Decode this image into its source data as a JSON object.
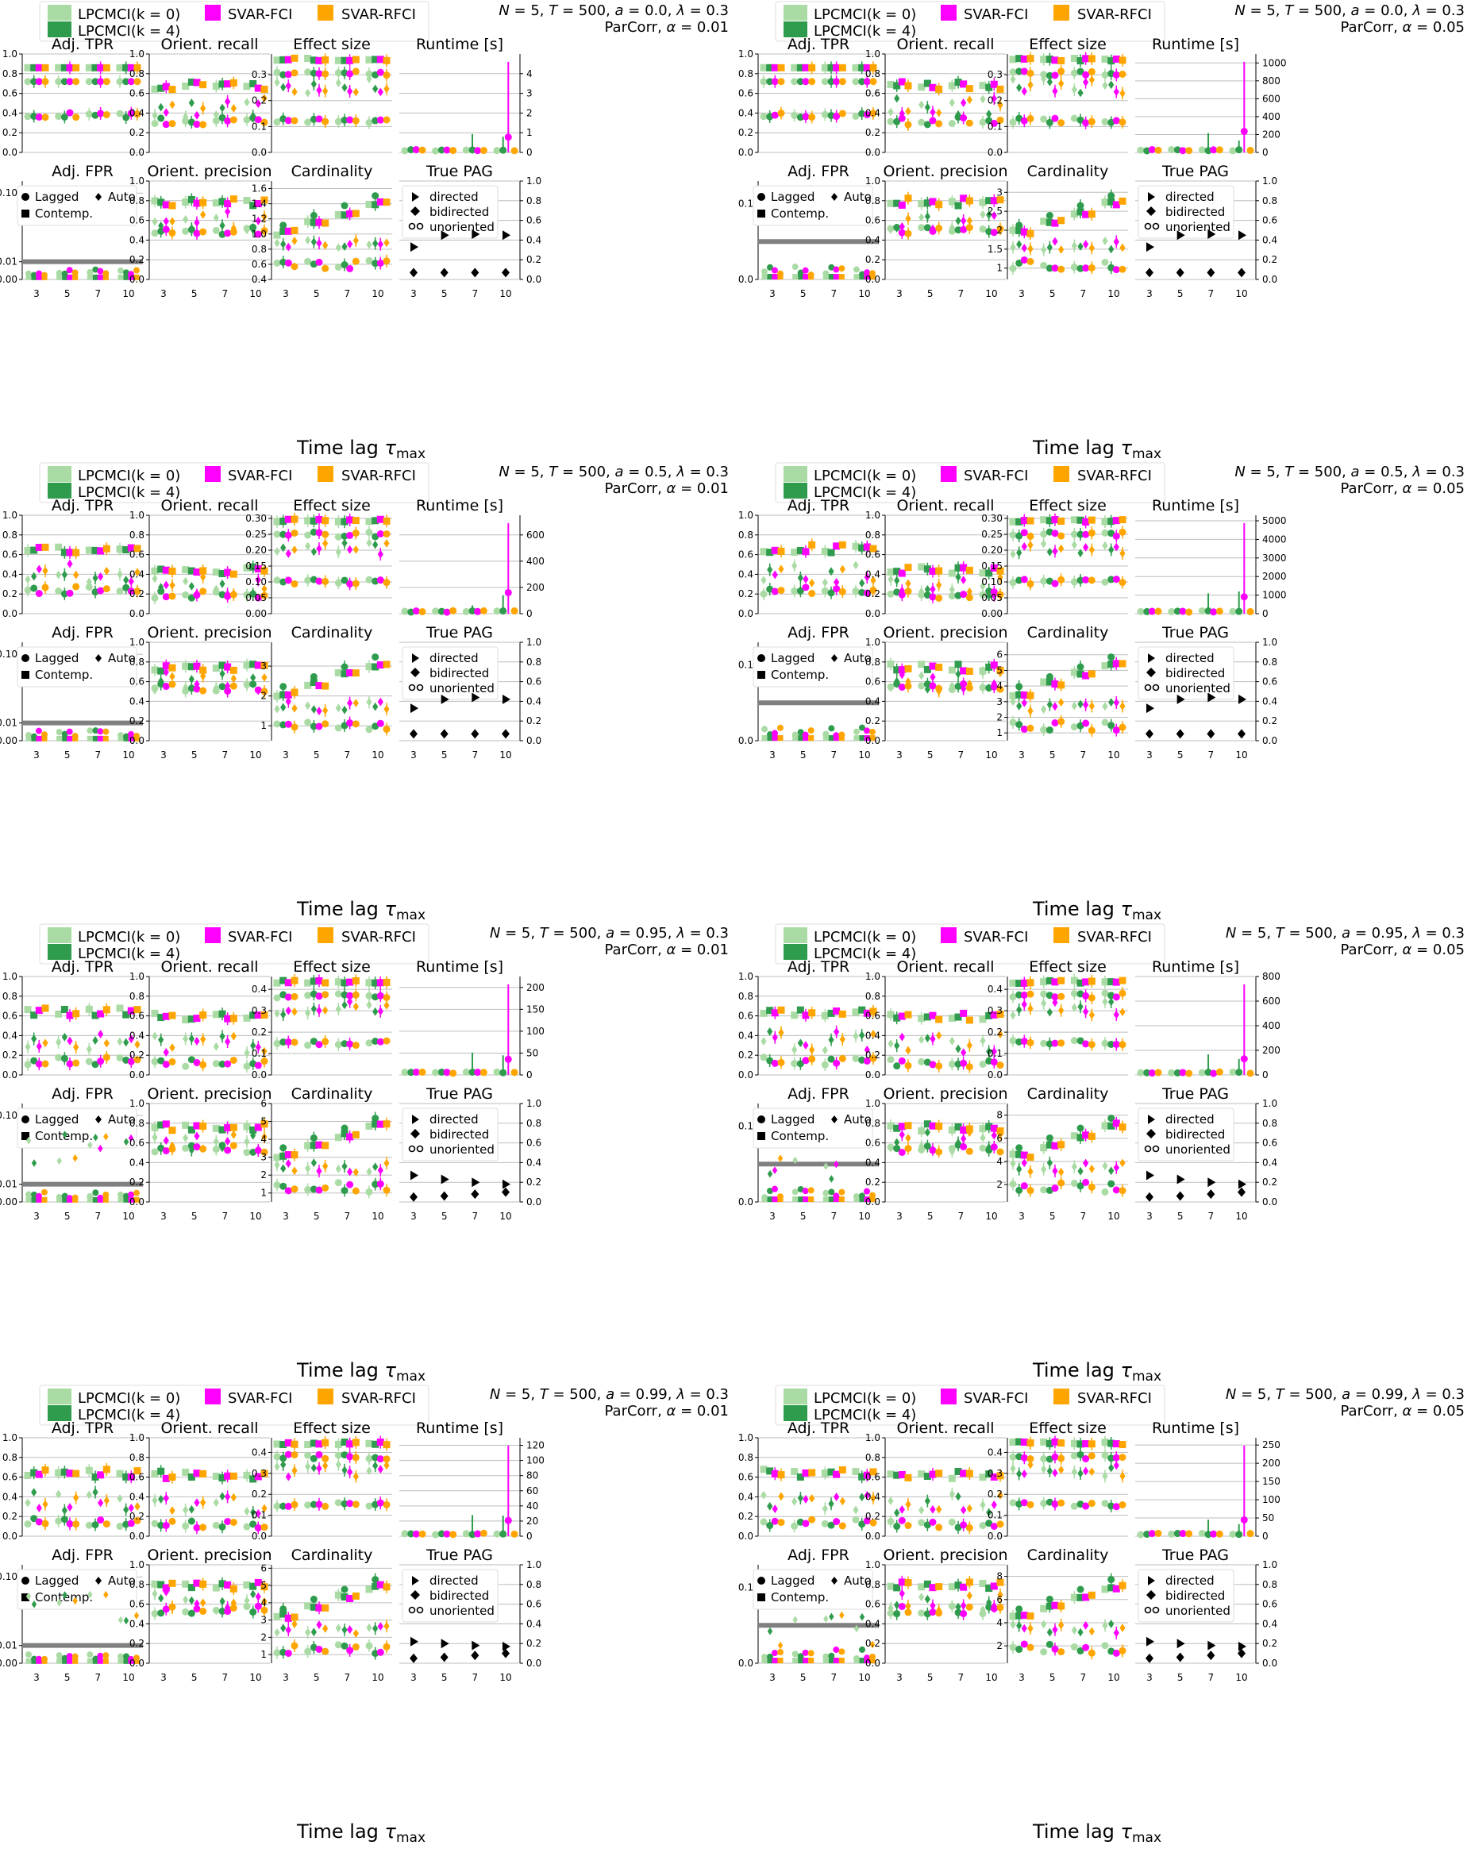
{
  "figure": {
    "xlabel": "Time lag τ_max",
    "legend_methods": [
      {
        "name": "LPCMCI(k = 0)",
        "color": "#aadba4"
      },
      {
        "name": "LPCMCI(k = 4)",
        "color": "#2e9c4c"
      },
      {
        "name": "SVAR-FCI",
        "color": "#ff00ff"
      },
      {
        "name": "SVAR-RFCI",
        "color": "#ffa500"
      }
    ],
    "fpr_legend": {
      "lagged": "Lagged",
      "auto": "Auto",
      "contemp": "Contemp."
    },
    "pag_legend": {
      "directed": "directed",
      "bidirected": "bidirected",
      "unoriented": "unoriented"
    },
    "subplot_titles": {
      "adj_tpr": "Adj. TPR",
      "orient_recall": "Orient. recall",
      "effect_size": "Effect size",
      "runtime": "Runtime [s]",
      "adj_fpr": "Adj. FPR",
      "orient_precision": "Orient. precision",
      "cardinality": "Cardinality",
      "true_pag": "True PAG"
    },
    "x_ticks": [
      "3",
      "5",
      "7",
      "10"
    ],
    "colors": {
      "lpcmci_k0": "#aadba4",
      "lpcmci_k4": "#2e9c4c",
      "svar_fci": "#ff00ff",
      "svar_rfci": "#ffa500",
      "alpha_line": "#808080"
    }
  },
  "chart_data": [
    {
      "type": "scatter",
      "parameters": "N = 5, T = 500, a = 0.0, λ = 0.3",
      "test": "ParCorr, α = 0.01",
      "alpha": 0.01,
      "runtime_ylim": [
        0,
        5
      ],
      "runtime_ticks": [
        0,
        1,
        2,
        3,
        4
      ],
      "card_ylim": [
        0.4,
        1.7
      ],
      "card_ticks": [
        0.4,
        0.6,
        0.8,
        1.0,
        1.2,
        1.4,
        1.6
      ],
      "eff_ylim": [
        0,
        0.38
      ],
      "eff_ticks": [
        0.0,
        0.1,
        0.2,
        0.3
      ]
    },
    {
      "type": "scatter",
      "parameters": "N = 5, T = 500, a = 0.0, λ = 0.3",
      "test": "ParCorr, α = 0.05",
      "alpha": 0.05,
      "runtime_ylim": [
        0,
        1100
      ],
      "runtime_ticks": [
        0,
        200,
        400,
        600,
        800,
        1000
      ],
      "card_ylim": [
        0.7,
        3.3
      ],
      "card_ticks": [
        1.0,
        1.5,
        2.0,
        2.5,
        3.0
      ],
      "eff_ylim": [
        0,
        0.38
      ],
      "eff_ticks": [
        0.0,
        0.1,
        0.2,
        0.3
      ]
    },
    {
      "type": "scatter",
      "parameters": "N = 5, T = 500, a = 0.5, λ = 0.3",
      "test": "ParCorr, α = 0.01",
      "alpha": 0.01,
      "runtime_ylim": [
        0,
        750
      ],
      "runtime_ticks": [
        0,
        200,
        400,
        600
      ],
      "card_ylim": [
        0.5,
        3.8
      ],
      "card_ticks": [
        1,
        2,
        3
      ],
      "eff_ylim": [
        0,
        0.31
      ],
      "eff_ticks": [
        0.0,
        0.05,
        0.1,
        0.15,
        0.2,
        0.25,
        0.3
      ]
    },
    {
      "type": "scatter",
      "parameters": "N = 5, T = 500, a = 0.5, λ = 0.3",
      "test": "ParCorr, α = 0.05",
      "alpha": 0.05,
      "runtime_ylim": [
        0,
        5300
      ],
      "runtime_ticks": [
        0,
        1000,
        2000,
        3000,
        4000,
        5000
      ],
      "card_ylim": [
        0.5,
        6.8
      ],
      "card_ticks": [
        1,
        2,
        3,
        4,
        5,
        6
      ],
      "eff_ylim": [
        0,
        0.31
      ],
      "eff_ticks": [
        0.0,
        0.05,
        0.1,
        0.15,
        0.2,
        0.25,
        0.3
      ]
    },
    {
      "type": "scatter",
      "parameters": "N = 5, T = 500, a = 0.95, λ = 0.3",
      "test": "ParCorr, α = 0.01",
      "alpha": 0.01,
      "runtime_ylim": [
        0,
        225
      ],
      "runtime_ticks": [
        0,
        50,
        100,
        150,
        200
      ],
      "card_ylim": [
        0.5,
        6.0
      ],
      "card_ticks": [
        1,
        2,
        3,
        4,
        5,
        6
      ],
      "eff_ylim": [
        0,
        0.46
      ],
      "eff_ticks": [
        0.0,
        0.1,
        0.2,
        0.3,
        0.4
      ]
    },
    {
      "type": "scatter",
      "parameters": "N = 5, T = 500, a = 0.95, λ = 0.3",
      "test": "ParCorr, α = 0.05",
      "alpha": 0.05,
      "runtime_ylim": [
        0,
        800
      ],
      "runtime_ticks": [
        0,
        200,
        400,
        600,
        800
      ],
      "card_ylim": [
        0.5,
        9.0
      ],
      "card_ticks": [
        2,
        4,
        6,
        8
      ],
      "eff_ylim": [
        0,
        0.46
      ],
      "eff_ticks": [
        0.0,
        0.1,
        0.2,
        0.3,
        0.4
      ]
    },
    {
      "type": "scatter",
      "parameters": "N = 5, T = 500, a = 0.99, λ = 0.3",
      "test": "ParCorr, α = 0.01",
      "alpha": 0.01,
      "runtime_ylim": [
        0,
        130
      ],
      "runtime_ticks": [
        0,
        20,
        40,
        60,
        80,
        100,
        120
      ],
      "card_ylim": [
        0.5,
        6.2
      ],
      "card_ticks": [
        1,
        2,
        3,
        4,
        5,
        6
      ],
      "eff_ylim": [
        0,
        0.47
      ],
      "eff_ticks": [
        0.0,
        0.1,
        0.2,
        0.3,
        0.4
      ]
    },
    {
      "type": "scatter",
      "parameters": "N = 5, T = 500, a = 0.99, λ = 0.3",
      "test": "ParCorr, α = 0.05",
      "alpha": 0.05,
      "runtime_ylim": [
        0,
        270
      ],
      "runtime_ticks": [
        0,
        50,
        100,
        150,
        200,
        250
      ],
      "card_ylim": [
        0.5,
        9.0
      ],
      "card_ticks": [
        2,
        4,
        6,
        8
      ],
      "eff_ylim": [
        0,
        0.47
      ],
      "eff_ticks": [
        0.0,
        0.1,
        0.2,
        0.3,
        0.4
      ]
    }
  ]
}
